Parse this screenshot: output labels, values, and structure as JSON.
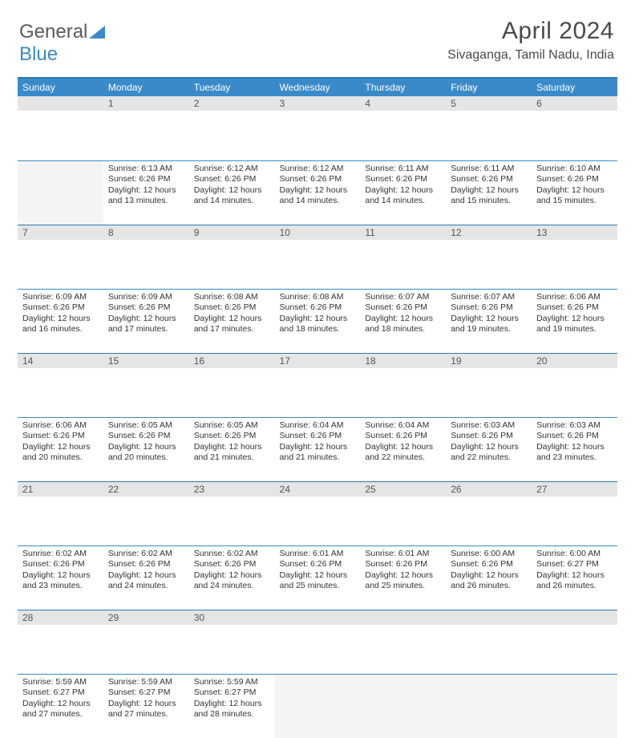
{
  "brand": {
    "part1": "General",
    "part2": "Blue"
  },
  "title": "April 2024",
  "location": "Sivaganga, Tamil Nadu, India",
  "colors": {
    "header_bg": "#3a8ac9",
    "header_border": "#2d79b5",
    "daynum_bg": "#e5e5e5",
    "empty_body_bg": "#f4f4f4",
    "text": "#333333",
    "title_text": "#4a4a4a"
  },
  "days_of_week": [
    "Sunday",
    "Monday",
    "Tuesday",
    "Wednesday",
    "Thursday",
    "Friday",
    "Saturday"
  ],
  "weeks": [
    [
      null,
      {
        "n": "1",
        "sr": "6:13 AM",
        "ss": "6:26 PM",
        "dl": "12 hours and 13 minutes."
      },
      {
        "n": "2",
        "sr": "6:12 AM",
        "ss": "6:26 PM",
        "dl": "12 hours and 14 minutes."
      },
      {
        "n": "3",
        "sr": "6:12 AM",
        "ss": "6:26 PM",
        "dl": "12 hours and 14 minutes."
      },
      {
        "n": "4",
        "sr": "6:11 AM",
        "ss": "6:26 PM",
        "dl": "12 hours and 14 minutes."
      },
      {
        "n": "5",
        "sr": "6:11 AM",
        "ss": "6:26 PM",
        "dl": "12 hours and 15 minutes."
      },
      {
        "n": "6",
        "sr": "6:10 AM",
        "ss": "6:26 PM",
        "dl": "12 hours and 15 minutes."
      }
    ],
    [
      {
        "n": "7",
        "sr": "6:09 AM",
        "ss": "6:26 PM",
        "dl": "12 hours and 16 minutes."
      },
      {
        "n": "8",
        "sr": "6:09 AM",
        "ss": "6:26 PM",
        "dl": "12 hours and 17 minutes."
      },
      {
        "n": "9",
        "sr": "6:08 AM",
        "ss": "6:26 PM",
        "dl": "12 hours and 17 minutes."
      },
      {
        "n": "10",
        "sr": "6:08 AM",
        "ss": "6:26 PM",
        "dl": "12 hours and 18 minutes."
      },
      {
        "n": "11",
        "sr": "6:07 AM",
        "ss": "6:26 PM",
        "dl": "12 hours and 18 minutes."
      },
      {
        "n": "12",
        "sr": "6:07 AM",
        "ss": "6:26 PM",
        "dl": "12 hours and 19 minutes."
      },
      {
        "n": "13",
        "sr": "6:06 AM",
        "ss": "6:26 PM",
        "dl": "12 hours and 19 minutes."
      }
    ],
    [
      {
        "n": "14",
        "sr": "6:06 AM",
        "ss": "6:26 PM",
        "dl": "12 hours and 20 minutes."
      },
      {
        "n": "15",
        "sr": "6:05 AM",
        "ss": "6:26 PM",
        "dl": "12 hours and 20 minutes."
      },
      {
        "n": "16",
        "sr": "6:05 AM",
        "ss": "6:26 PM",
        "dl": "12 hours and 21 minutes."
      },
      {
        "n": "17",
        "sr": "6:04 AM",
        "ss": "6:26 PM",
        "dl": "12 hours and 21 minutes."
      },
      {
        "n": "18",
        "sr": "6:04 AM",
        "ss": "6:26 PM",
        "dl": "12 hours and 22 minutes."
      },
      {
        "n": "19",
        "sr": "6:03 AM",
        "ss": "6:26 PM",
        "dl": "12 hours and 22 minutes."
      },
      {
        "n": "20",
        "sr": "6:03 AM",
        "ss": "6:26 PM",
        "dl": "12 hours and 23 minutes."
      }
    ],
    [
      {
        "n": "21",
        "sr": "6:02 AM",
        "ss": "6:26 PM",
        "dl": "12 hours and 23 minutes."
      },
      {
        "n": "22",
        "sr": "6:02 AM",
        "ss": "6:26 PM",
        "dl": "12 hours and 24 minutes."
      },
      {
        "n": "23",
        "sr": "6:02 AM",
        "ss": "6:26 PM",
        "dl": "12 hours and 24 minutes."
      },
      {
        "n": "24",
        "sr": "6:01 AM",
        "ss": "6:26 PM",
        "dl": "12 hours and 25 minutes."
      },
      {
        "n": "25",
        "sr": "6:01 AM",
        "ss": "6:26 PM",
        "dl": "12 hours and 25 minutes."
      },
      {
        "n": "26",
        "sr": "6:00 AM",
        "ss": "6:26 PM",
        "dl": "12 hours and 26 minutes."
      },
      {
        "n": "27",
        "sr": "6:00 AM",
        "ss": "6:27 PM",
        "dl": "12 hours and 26 minutes."
      }
    ],
    [
      {
        "n": "28",
        "sr": "5:59 AM",
        "ss": "6:27 PM",
        "dl": "12 hours and 27 minutes."
      },
      {
        "n": "29",
        "sr": "5:59 AM",
        "ss": "6:27 PM",
        "dl": "12 hours and 27 minutes."
      },
      {
        "n": "30",
        "sr": "5:59 AM",
        "ss": "6:27 PM",
        "dl": "12 hours and 28 minutes."
      },
      null,
      null,
      null,
      null
    ]
  ],
  "labels": {
    "sunrise": "Sunrise:",
    "sunset": "Sunset:",
    "daylight": "Daylight:"
  }
}
